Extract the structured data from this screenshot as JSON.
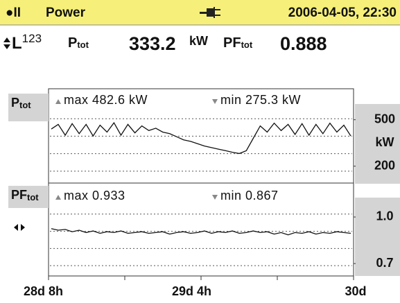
{
  "header": {
    "status": "●II",
    "title": "Power",
    "datetime": "2006-04-05, 22:30"
  },
  "readings": {
    "phase": "L",
    "phase_sup": "123",
    "p_label": "P",
    "p_sub": "tot",
    "p_value": "333.2",
    "p_unit": "kW",
    "pf_label": "PF",
    "pf_sub": "tot",
    "pf_value": "0.888"
  },
  "time_axis": [
    "28d 8h",
    "29d 4h",
    "30d"
  ],
  "chart_data": [
    {
      "type": "line",
      "label": "P",
      "label_sub": "tot",
      "max_text": "max 482.6 kW",
      "min_text": "min 275.3 kW",
      "unit": "kW",
      "ylim": [
        100,
        700
      ],
      "yticks": [
        200,
        500
      ],
      "color": "#111111",
      "values": [
        440,
        470,
        400,
        475,
        410,
        470,
        395,
        465,
        420,
        480,
        400,
        470,
        415,
        460,
        430,
        445,
        420,
        410,
        390,
        370,
        360,
        345,
        330,
        320,
        310,
        300,
        290,
        282,
        300,
        380,
        460,
        420,
        478,
        430,
        470,
        405,
        475,
        400,
        470,
        410,
        478,
        420,
        465,
        395
      ]
    },
    {
      "type": "line",
      "label": "PF",
      "label_sub": "tot",
      "max_text": "max 0.933",
      "min_text": "min 0.867",
      "ylim": [
        0.62,
        1.21
      ],
      "yticks": [
        {
          "value": 1.0,
          "label": "1.0"
        },
        0.7
      ],
      "color": "#111111",
      "values": [
        0.925,
        0.915,
        0.92,
        0.905,
        0.915,
        0.9,
        0.91,
        0.895,
        0.905,
        0.9,
        0.91,
        0.895,
        0.9,
        0.905,
        0.895,
        0.9,
        0.905,
        0.89,
        0.9,
        0.905,
        0.895,
        0.9,
        0.91,
        0.895,
        0.905,
        0.9,
        0.91,
        0.895,
        0.9,
        0.91,
        0.9,
        0.905,
        0.89,
        0.9,
        0.885,
        0.9,
        0.895,
        0.905,
        0.89,
        0.9,
        0.895,
        0.905,
        0.9,
        0.895
      ]
    }
  ]
}
